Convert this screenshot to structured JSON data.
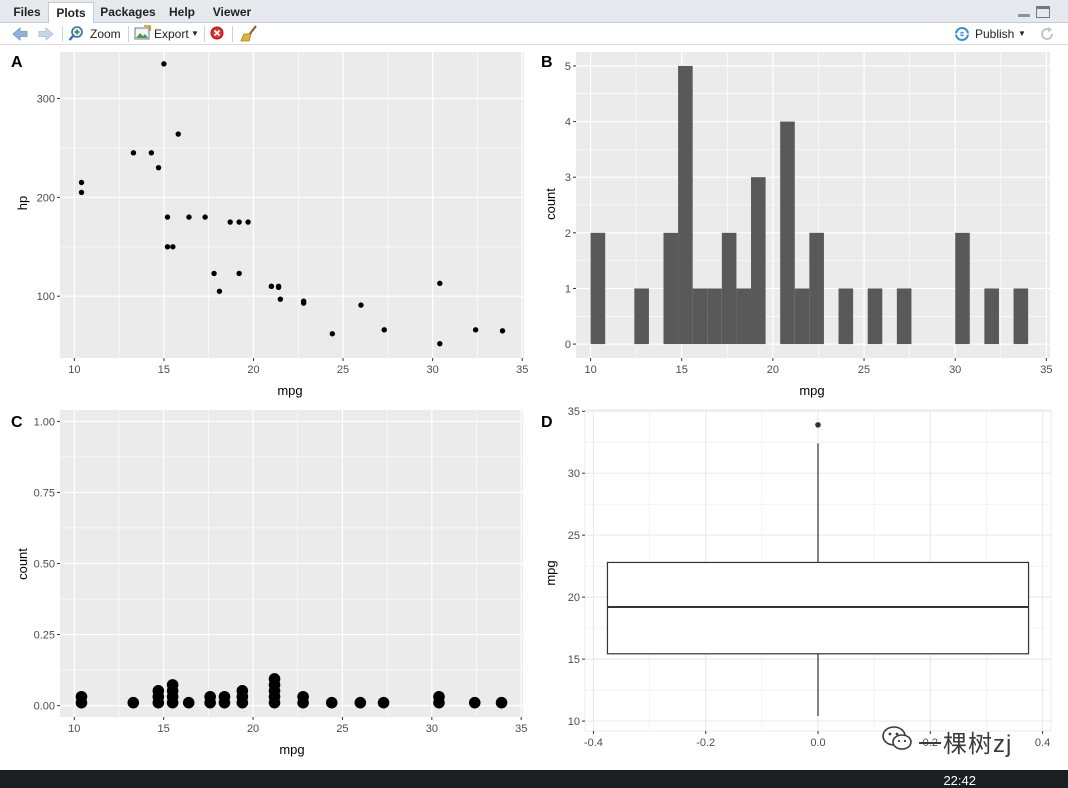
{
  "tabs": [
    {
      "label": "Files"
    },
    {
      "label": "Plots"
    },
    {
      "label": "Packages"
    },
    {
      "label": "Help"
    },
    {
      "label": "Viewer"
    }
  ],
  "toolbar": {
    "zoom_label": "Zoom",
    "export_label": "Export",
    "publish_label": "Publish"
  },
  "panels": {
    "A": {
      "tag": "A",
      "xlabel": "mpg",
      "ylabel": "hp"
    },
    "B": {
      "tag": "B",
      "xlabel": "mpg",
      "ylabel": "count"
    },
    "C": {
      "tag": "C",
      "xlabel": "mpg",
      "ylabel": "count"
    },
    "D": {
      "tag": "D",
      "xlabel": "",
      "ylabel": "mpg"
    }
  },
  "taskbar": {
    "time": "22:42"
  },
  "watermark": {
    "text": "一棵树zj"
  },
  "colors": {
    "panel_bg": "#ebebeb",
    "grid": "#ffffff",
    "bar": "#595959",
    "point": "#000000"
  },
  "chart_data": [
    {
      "type": "scatter",
      "title": "A",
      "xlabel": "mpg",
      "ylabel": "hp",
      "xlim": [
        9.2,
        35.1
      ],
      "ylim": [
        37.5,
        347
      ],
      "xticks": [
        10,
        15,
        20,
        25,
        30,
        35
      ],
      "yticks": [
        100,
        200,
        300
      ],
      "points": [
        [
          21.0,
          110
        ],
        [
          21.0,
          110
        ],
        [
          22.8,
          93
        ],
        [
          21.4,
          110
        ],
        [
          18.7,
          175
        ],
        [
          18.1,
          105
        ],
        [
          14.3,
          245
        ],
        [
          24.4,
          62
        ],
        [
          22.8,
          95
        ],
        [
          19.2,
          123
        ],
        [
          17.8,
          123
        ],
        [
          16.4,
          180
        ],
        [
          17.3,
          180
        ],
        [
          15.2,
          180
        ],
        [
          10.4,
          205
        ],
        [
          10.4,
          215
        ],
        [
          14.7,
          230
        ],
        [
          32.4,
          66
        ],
        [
          30.4,
          52
        ],
        [
          33.9,
          65
        ],
        [
          21.5,
          97
        ],
        [
          15.5,
          150
        ],
        [
          15.2,
          150
        ],
        [
          13.3,
          245
        ],
        [
          19.2,
          175
        ],
        [
          27.3,
          66
        ],
        [
          26.0,
          91
        ],
        [
          30.4,
          113
        ],
        [
          15.8,
          264
        ],
        [
          19.7,
          175
        ],
        [
          15.0,
          335
        ],
        [
          21.4,
          109
        ]
      ]
    },
    {
      "type": "bar",
      "title": "B",
      "xlabel": "mpg",
      "ylabel": "count",
      "xlim": [
        9.2,
        35.2
      ],
      "ylim": [
        -0.25,
        5.25
      ],
      "xticks": [
        10,
        15,
        20,
        25,
        30,
        35
      ],
      "yticks": [
        0,
        1,
        2,
        3,
        4,
        5
      ],
      "bin_start": 10.0,
      "bin_width": 0.8,
      "counts": [
        2,
        0,
        0,
        1,
        0,
        2,
        5,
        1,
        1,
        2,
        1,
        3,
        0,
        4,
        1,
        2,
        0,
        1,
        0,
        1,
        0,
        1,
        0,
        0,
        0,
        2,
        0,
        1,
        0,
        1
      ]
    },
    {
      "type": "scatter",
      "subtype": "dotplot",
      "title": "C",
      "xlabel": "mpg",
      "ylabel": "count",
      "xlim": [
        9.2,
        35.1
      ],
      "ylim": [
        -0.04,
        1.04
      ],
      "xticks": [
        10,
        15,
        20,
        25,
        30,
        35
      ],
      "yticks": [
        "0.00",
        "0.25",
        "0.50",
        "0.75",
        "1.00"
      ],
      "stacks": [
        {
          "x": 10.4,
          "n": 2
        },
        {
          "x": 13.3,
          "n": 1
        },
        {
          "x": 14.7,
          "n": 3
        },
        {
          "x": 15.5,
          "n": 4
        },
        {
          "x": 16.4,
          "n": 1
        },
        {
          "x": 17.6,
          "n": 2
        },
        {
          "x": 18.4,
          "n": 2
        },
        {
          "x": 19.4,
          "n": 3
        },
        {
          "x": 21.2,
          "n": 5
        },
        {
          "x": 22.8,
          "n": 2
        },
        {
          "x": 24.4,
          "n": 1
        },
        {
          "x": 26.0,
          "n": 1
        },
        {
          "x": 27.3,
          "n": 1
        },
        {
          "x": 30.4,
          "n": 2
        },
        {
          "x": 32.4,
          "n": 1
        },
        {
          "x": 33.9,
          "n": 1
        }
      ]
    },
    {
      "type": "box",
      "title": "D",
      "xlabel": "",
      "ylabel": "mpg",
      "xlim": [
        -0.415,
        0.415
      ],
      "ylim": [
        9.2,
        35.1
      ],
      "xticks": [
        "-0.4",
        "-0.2",
        "0.0",
        "0.2",
        "0.4"
      ],
      "yticks": [
        10,
        15,
        20,
        25,
        30,
        35
      ],
      "box": {
        "x_left": -0.375,
        "x_right": 0.375,
        "whisker_low": 10.4,
        "q1": 15.43,
        "median": 19.2,
        "q3": 22.8,
        "whisker_high": 32.4,
        "outliers": [
          33.9
        ]
      }
    }
  ]
}
